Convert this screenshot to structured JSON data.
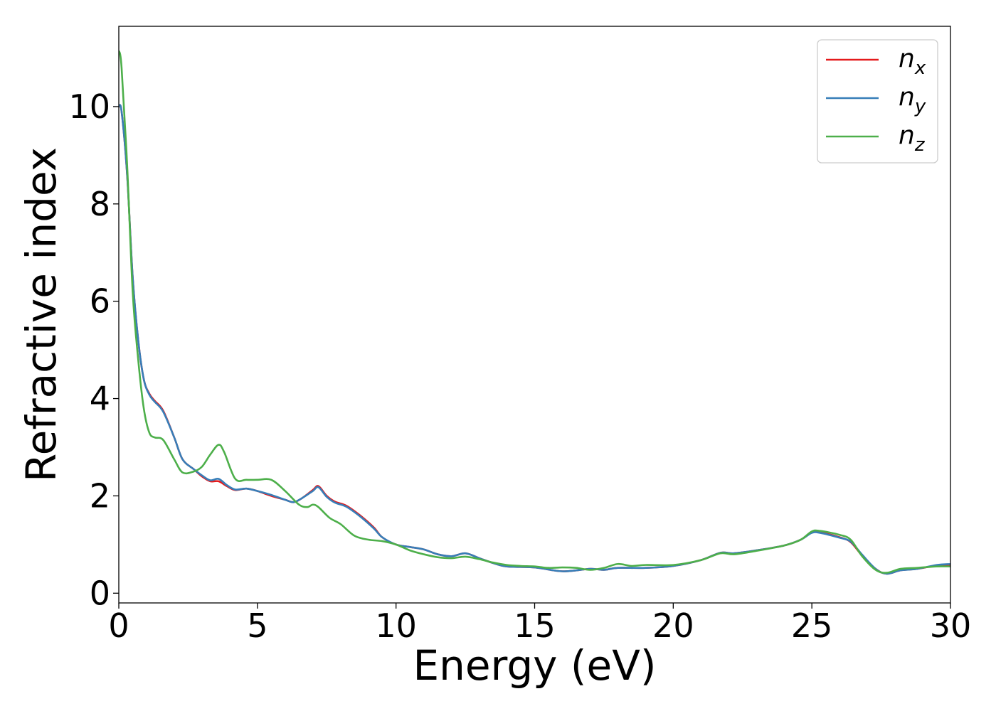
{
  "chart_data": {
    "type": "line",
    "title": "",
    "xlabel": "Energy (eV)",
    "ylabel": "Refractive index",
    "xlim": [
      0,
      30
    ],
    "ylim": [
      -0.2,
      11.65
    ],
    "xticks": [
      "0",
      "5",
      "10",
      "15",
      "20",
      "25",
      "30"
    ],
    "yticks": [
      "0",
      "2",
      "4",
      "6",
      "8",
      "10"
    ],
    "grid": false,
    "legend_position": "top-right",
    "series": [
      {
        "name": "n_x",
        "label_base": "n",
        "label_sub": "x",
        "color": "#e41a1c",
        "points": [
          [
            0,
            10.0
          ],
          [
            0.1,
            9.9
          ],
          [
            0.3,
            8.6
          ],
          [
            0.5,
            6.5
          ],
          [
            0.7,
            5.2
          ],
          [
            0.9,
            4.4
          ],
          [
            1.1,
            4.1
          ],
          [
            1.3,
            3.95
          ],
          [
            1.6,
            3.75
          ],
          [
            2.0,
            3.2
          ],
          [
            2.3,
            2.75
          ],
          [
            2.7,
            2.55
          ],
          [
            3.0,
            2.4
          ],
          [
            3.3,
            2.3
          ],
          [
            3.6,
            2.3
          ],
          [
            3.9,
            2.2
          ],
          [
            4.2,
            2.12
          ],
          [
            4.6,
            2.15
          ],
          [
            5.0,
            2.1
          ],
          [
            5.5,
            2.0
          ],
          [
            6.0,
            1.92
          ],
          [
            6.3,
            1.87
          ],
          [
            6.6,
            1.95
          ],
          [
            7.0,
            2.12
          ],
          [
            7.2,
            2.2
          ],
          [
            7.5,
            2.0
          ],
          [
            7.8,
            1.88
          ],
          [
            8.2,
            1.8
          ],
          [
            8.7,
            1.6
          ],
          [
            9.2,
            1.35
          ],
          [
            9.5,
            1.15
          ],
          [
            10.0,
            1.0
          ],
          [
            10.5,
            0.95
          ],
          [
            11.0,
            0.9
          ],
          [
            11.5,
            0.8
          ],
          [
            12.0,
            0.76
          ],
          [
            12.5,
            0.82
          ],
          [
            13.0,
            0.72
          ],
          [
            13.5,
            0.62
          ],
          [
            14.0,
            0.55
          ],
          [
            15.0,
            0.53
          ],
          [
            16.0,
            0.45
          ],
          [
            17.0,
            0.5
          ],
          [
            17.5,
            0.48
          ],
          [
            18.0,
            0.52
          ],
          [
            19.0,
            0.52
          ],
          [
            20.0,
            0.56
          ],
          [
            21.0,
            0.68
          ],
          [
            21.7,
            0.83
          ],
          [
            22.2,
            0.82
          ],
          [
            23.0,
            0.88
          ],
          [
            24.0,
            0.98
          ],
          [
            24.6,
            1.1
          ],
          [
            25.0,
            1.25
          ],
          [
            25.3,
            1.25
          ],
          [
            26.0,
            1.15
          ],
          [
            26.4,
            1.05
          ],
          [
            26.8,
            0.78
          ],
          [
            27.3,
            0.5
          ],
          [
            27.7,
            0.4
          ],
          [
            28.2,
            0.47
          ],
          [
            28.8,
            0.5
          ],
          [
            29.5,
            0.57
          ],
          [
            30.0,
            0.58
          ]
        ]
      },
      {
        "name": "n_y",
        "label_base": "n",
        "label_sub": "y",
        "color": "#377eb8",
        "points": [
          [
            0,
            10.0
          ],
          [
            0.1,
            9.9
          ],
          [
            0.3,
            8.6
          ],
          [
            0.5,
            6.5
          ],
          [
            0.7,
            5.2
          ],
          [
            0.9,
            4.4
          ],
          [
            1.1,
            4.08
          ],
          [
            1.3,
            3.93
          ],
          [
            1.6,
            3.73
          ],
          [
            2.0,
            3.2
          ],
          [
            2.3,
            2.75
          ],
          [
            2.7,
            2.55
          ],
          [
            3.0,
            2.42
          ],
          [
            3.3,
            2.32
          ],
          [
            3.6,
            2.35
          ],
          [
            3.9,
            2.22
          ],
          [
            4.2,
            2.13
          ],
          [
            4.6,
            2.15
          ],
          [
            5.0,
            2.1
          ],
          [
            5.5,
            2.02
          ],
          [
            6.0,
            1.92
          ],
          [
            6.3,
            1.87
          ],
          [
            6.6,
            1.95
          ],
          [
            7.0,
            2.1
          ],
          [
            7.2,
            2.18
          ],
          [
            7.5,
            1.98
          ],
          [
            7.8,
            1.86
          ],
          [
            8.2,
            1.78
          ],
          [
            8.7,
            1.58
          ],
          [
            9.2,
            1.33
          ],
          [
            9.5,
            1.15
          ],
          [
            10.0,
            1.0
          ],
          [
            10.5,
            0.95
          ],
          [
            11.0,
            0.9
          ],
          [
            11.5,
            0.8
          ],
          [
            12.0,
            0.76
          ],
          [
            12.5,
            0.82
          ],
          [
            13.0,
            0.72
          ],
          [
            13.5,
            0.62
          ],
          [
            14.0,
            0.55
          ],
          [
            15.0,
            0.53
          ],
          [
            16.0,
            0.45
          ],
          [
            17.0,
            0.5
          ],
          [
            17.5,
            0.48
          ],
          [
            18.0,
            0.52
          ],
          [
            19.0,
            0.52
          ],
          [
            20.0,
            0.56
          ],
          [
            21.0,
            0.68
          ],
          [
            21.7,
            0.83
          ],
          [
            22.2,
            0.82
          ],
          [
            23.0,
            0.88
          ],
          [
            24.0,
            0.98
          ],
          [
            24.6,
            1.1
          ],
          [
            25.0,
            1.24
          ],
          [
            25.3,
            1.24
          ],
          [
            26.0,
            1.14
          ],
          [
            26.4,
            1.06
          ],
          [
            26.8,
            0.8
          ],
          [
            27.3,
            0.5
          ],
          [
            27.7,
            0.4
          ],
          [
            28.2,
            0.47
          ],
          [
            28.8,
            0.5
          ],
          [
            29.5,
            0.58
          ],
          [
            30.0,
            0.6
          ]
        ]
      },
      {
        "name": "n_z",
        "label_base": "n",
        "label_sub": "z",
        "color": "#4daf4a",
        "points": [
          [
            0,
            11.15
          ],
          [
            0.1,
            10.8
          ],
          [
            0.3,
            8.8
          ],
          [
            0.5,
            6.2
          ],
          [
            0.7,
            4.8
          ],
          [
            0.9,
            3.8
          ],
          [
            1.1,
            3.3
          ],
          [
            1.3,
            3.2
          ],
          [
            1.6,
            3.15
          ],
          [
            2.0,
            2.75
          ],
          [
            2.3,
            2.48
          ],
          [
            2.7,
            2.5
          ],
          [
            3.0,
            2.6
          ],
          [
            3.3,
            2.85
          ],
          [
            3.6,
            3.05
          ],
          [
            3.8,
            2.9
          ],
          [
            4.2,
            2.35
          ],
          [
            4.6,
            2.33
          ],
          [
            5.0,
            2.33
          ],
          [
            5.5,
            2.33
          ],
          [
            6.0,
            2.1
          ],
          [
            6.5,
            1.82
          ],
          [
            6.8,
            1.77
          ],
          [
            7.0,
            1.82
          ],
          [
            7.2,
            1.77
          ],
          [
            7.6,
            1.55
          ],
          [
            8.0,
            1.42
          ],
          [
            8.5,
            1.18
          ],
          [
            9.0,
            1.1
          ],
          [
            9.5,
            1.07
          ],
          [
            10.0,
            1.0
          ],
          [
            10.5,
            0.88
          ],
          [
            11.0,
            0.8
          ],
          [
            11.5,
            0.74
          ],
          [
            12.0,
            0.72
          ],
          [
            12.5,
            0.75
          ],
          [
            13.0,
            0.7
          ],
          [
            13.5,
            0.63
          ],
          [
            14.0,
            0.58
          ],
          [
            14.5,
            0.56
          ],
          [
            15.0,
            0.55
          ],
          [
            15.5,
            0.52
          ],
          [
            16.0,
            0.53
          ],
          [
            16.5,
            0.52
          ],
          [
            17.0,
            0.48
          ],
          [
            17.5,
            0.52
          ],
          [
            18.0,
            0.6
          ],
          [
            18.5,
            0.56
          ],
          [
            19.0,
            0.58
          ],
          [
            20.0,
            0.58
          ],
          [
            21.0,
            0.68
          ],
          [
            21.7,
            0.82
          ],
          [
            22.2,
            0.8
          ],
          [
            23.0,
            0.87
          ],
          [
            24.0,
            0.98
          ],
          [
            24.6,
            1.1
          ],
          [
            25.0,
            1.27
          ],
          [
            25.3,
            1.28
          ],
          [
            26.0,
            1.2
          ],
          [
            26.4,
            1.1
          ],
          [
            26.8,
            0.77
          ],
          [
            27.3,
            0.48
          ],
          [
            27.7,
            0.42
          ],
          [
            28.2,
            0.5
          ],
          [
            28.8,
            0.52
          ],
          [
            29.5,
            0.55
          ],
          [
            30.0,
            0.55
          ]
        ]
      }
    ]
  }
}
